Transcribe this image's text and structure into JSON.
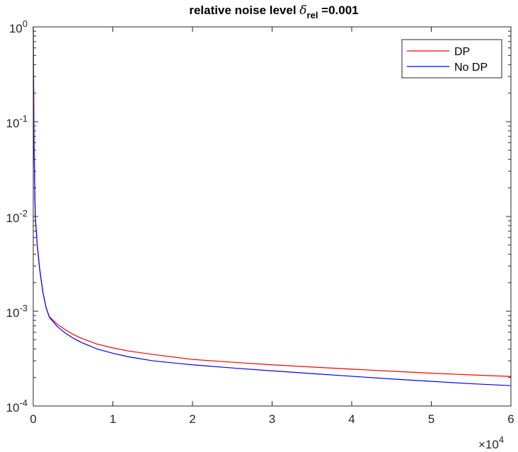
{
  "chart_data": {
    "type": "line",
    "title": {
      "prefix": "relative noise level ",
      "symbol": "δ",
      "subscript": "rel",
      "suffix": " =0.001"
    },
    "xlabel": "",
    "ylabel": "",
    "x_scale": "linear",
    "y_scale": "log",
    "xlim": [
      0,
      60000
    ],
    "ylim": [
      0.0001,
      1
    ],
    "x_ticks": [
      0,
      10000,
      20000,
      30000,
      40000,
      50000,
      60000
    ],
    "x_tick_labels": [
      "0",
      "1",
      "2",
      "3",
      "4",
      "5",
      "6"
    ],
    "x_multiplier": {
      "base": "×10",
      "exponent": "4"
    },
    "y_ticks": [
      {
        "value": 0.0001,
        "base": "10",
        "exponent": "-4"
      },
      {
        "value": 0.001,
        "base": "10",
        "exponent": "-3"
      },
      {
        "value": 0.01,
        "base": "10",
        "exponent": "-2"
      },
      {
        "value": 0.1,
        "base": "10",
        "exponent": "-1"
      },
      {
        "value": 1,
        "base": "10",
        "exponent": "0"
      }
    ],
    "grid": false,
    "legend_position": "top-right",
    "series": [
      {
        "name": "DP",
        "color": "#ff0000",
        "points": [
          [
            0,
            1
          ],
          [
            100,
            0.05
          ],
          [
            250,
            0.01
          ],
          [
            500,
            0.005
          ],
          [
            800,
            0.0028
          ],
          [
            1200,
            0.0016
          ],
          [
            1600,
            0.0011
          ],
          [
            2000,
            0.00088
          ],
          [
            3000,
            0.00073
          ],
          [
            4000,
            0.00064
          ],
          [
            5000,
            0.00057
          ],
          [
            6000,
            0.00052
          ],
          [
            8000,
            0.00045
          ],
          [
            10000,
            0.00041
          ],
          [
            12000,
            0.00038
          ],
          [
            15000,
            0.00035
          ],
          [
            20000,
            0.00031
          ],
          [
            25000,
            0.00029
          ],
          [
            30000,
            0.000272
          ],
          [
            35000,
            0.000258
          ],
          [
            40000,
            0.000245
          ],
          [
            45000,
            0.000233
          ],
          [
            50000,
            0.000222
          ],
          [
            55000,
            0.000213
          ],
          [
            60000,
            0.000205
          ]
        ]
      },
      {
        "name": "No DP",
        "color": "#0000ff",
        "points": [
          [
            0,
            1
          ],
          [
            100,
            0.05
          ],
          [
            250,
            0.01
          ],
          [
            500,
            0.005
          ],
          [
            800,
            0.0028
          ],
          [
            1200,
            0.0016
          ],
          [
            1600,
            0.0011
          ],
          [
            2000,
            0.00087
          ],
          [
            3000,
            0.00069
          ],
          [
            4000,
            0.00059
          ],
          [
            5000,
            0.00052
          ],
          [
            6000,
            0.00047
          ],
          [
            8000,
            0.0004
          ],
          [
            10000,
            0.00036
          ],
          [
            12000,
            0.00033
          ],
          [
            15000,
            0.0003
          ],
          [
            20000,
            0.000272
          ],
          [
            25000,
            0.000252
          ],
          [
            30000,
            0.000235
          ],
          [
            35000,
            0.00022
          ],
          [
            40000,
            0.000206
          ],
          [
            45000,
            0.000193
          ],
          [
            50000,
            0.000182
          ],
          [
            55000,
            0.000172
          ],
          [
            60000,
            0.000164
          ]
        ]
      }
    ]
  }
}
